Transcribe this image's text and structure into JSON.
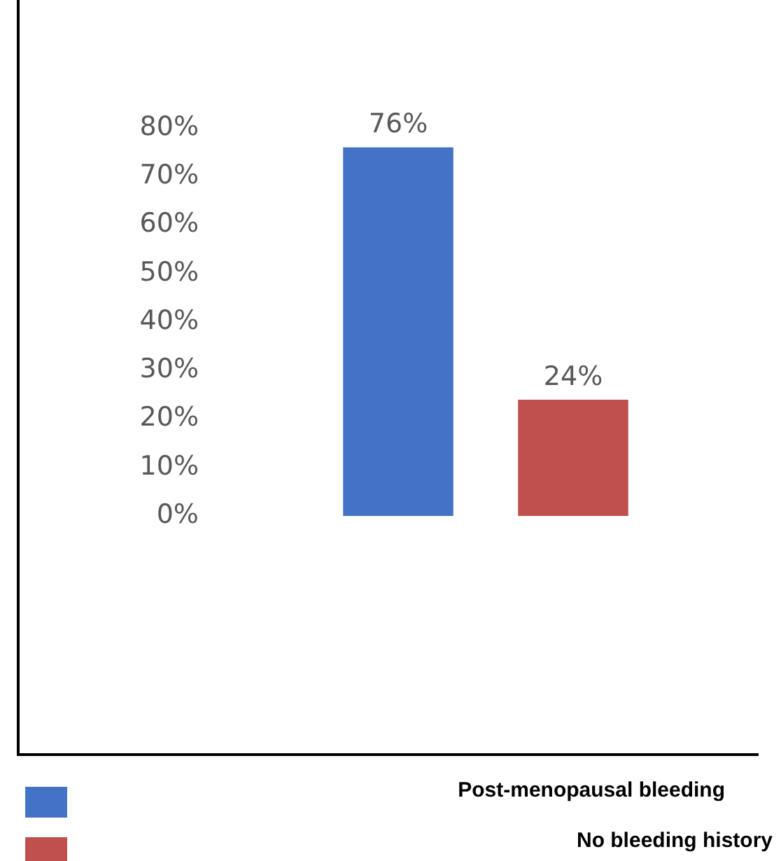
{
  "chart_data": {
    "type": "bar",
    "categories": [
      null
    ],
    "series": [
      {
        "name": "Post-menopausal bleeding",
        "color": "#4472c4",
        "values": [
          76
        ],
        "value_labels": [
          "76%"
        ]
      },
      {
        "name": "No bleeding history",
        "color": "#c0504d",
        "values": [
          24
        ],
        "value_labels": [
          "24%"
        ]
      }
    ],
    "ylim": [
      0,
      80
    ],
    "yticks": [
      {
        "value": 0,
        "label": "0%"
      },
      {
        "value": 10,
        "label": "10%"
      },
      {
        "value": 20,
        "label": "20%"
      },
      {
        "value": 30,
        "label": "30%"
      },
      {
        "value": 40,
        "label": "40%"
      },
      {
        "value": 50,
        "label": "50%"
      },
      {
        "value": 60,
        "label": "60%"
      },
      {
        "value": 70,
        "label": "70%"
      },
      {
        "value": 80,
        "label": "80%"
      }
    ],
    "tick_labels": "y",
    "grid": false,
    "legend": "bottom"
  }
}
